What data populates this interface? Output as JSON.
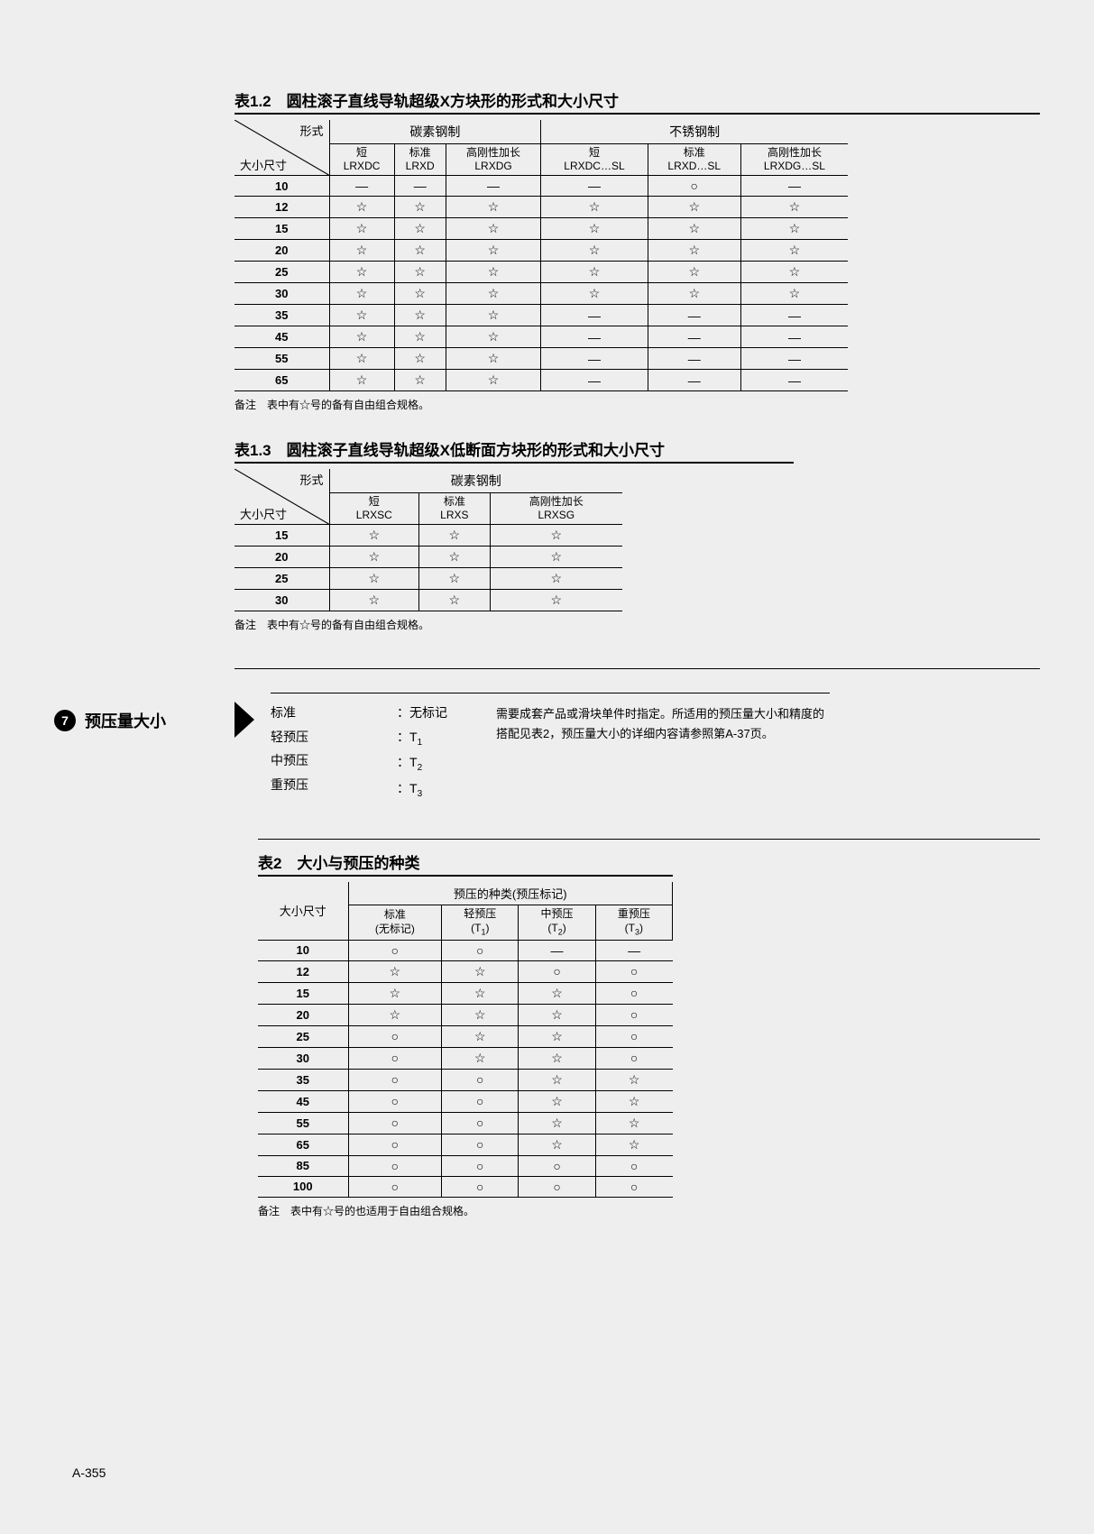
{
  "symbols": {
    "star": "☆",
    "circle": "○",
    "dash": "—"
  },
  "table12": {
    "title": "表1.2　圆柱滚子直线导轨超级X方块形的形式和大小尺寸",
    "diag_top": "形式",
    "diag_bottom": "大小尺寸",
    "group1": "碳素钢制",
    "group2": "不锈钢制",
    "cols": [
      {
        "l1": "短",
        "l2": "LRXDC"
      },
      {
        "l1": "标准",
        "l2": "LRXD"
      },
      {
        "l1": "高刚性加长",
        "l2": "LRXDG"
      },
      {
        "l1": "短",
        "l2": "LRXDC…SL"
      },
      {
        "l1": "标准",
        "l2": "LRXD…SL"
      },
      {
        "l1": "高刚性加长",
        "l2": "LRXDG…SL"
      }
    ],
    "rows": [
      {
        "size": "10",
        "v": [
          "—",
          "—",
          "—",
          "—",
          "○",
          "—"
        ]
      },
      {
        "size": "12",
        "v": [
          "☆",
          "☆",
          "☆",
          "☆",
          "☆",
          "☆"
        ]
      },
      {
        "size": "15",
        "v": [
          "☆",
          "☆",
          "☆",
          "☆",
          "☆",
          "☆"
        ]
      },
      {
        "size": "20",
        "v": [
          "☆",
          "☆",
          "☆",
          "☆",
          "☆",
          "☆"
        ]
      },
      {
        "size": "25",
        "v": [
          "☆",
          "☆",
          "☆",
          "☆",
          "☆",
          "☆"
        ]
      },
      {
        "size": "30",
        "v": [
          "☆",
          "☆",
          "☆",
          "☆",
          "☆",
          "☆"
        ]
      },
      {
        "size": "35",
        "v": [
          "☆",
          "☆",
          "☆",
          "—",
          "—",
          "—"
        ]
      },
      {
        "size": "45",
        "v": [
          "☆",
          "☆",
          "☆",
          "—",
          "—",
          "—"
        ]
      },
      {
        "size": "55",
        "v": [
          "☆",
          "☆",
          "☆",
          "—",
          "—",
          "—"
        ]
      },
      {
        "size": "65",
        "v": [
          "☆",
          "☆",
          "☆",
          "—",
          "—",
          "—"
        ]
      }
    ],
    "note": "备注　表中有☆号的备有自由组合规格。"
  },
  "table13": {
    "title": "表1.3　圆柱滚子直线导轨超级X低断面方块形的形式和大小尺寸",
    "diag_top": "形式",
    "diag_bottom": "大小尺寸",
    "group1": "碳素钢制",
    "cols": [
      {
        "l1": "短",
        "l2": "LRXSC"
      },
      {
        "l1": "标准",
        "l2": "LRXS"
      },
      {
        "l1": "高刚性加长",
        "l2": "LRXSG"
      }
    ],
    "rows": [
      {
        "size": "15",
        "v": [
          "☆",
          "☆",
          "☆"
        ]
      },
      {
        "size": "20",
        "v": [
          "☆",
          "☆",
          "☆"
        ]
      },
      {
        "size": "25",
        "v": [
          "☆",
          "☆",
          "☆"
        ]
      },
      {
        "size": "30",
        "v": [
          "☆",
          "☆",
          "☆"
        ]
      }
    ],
    "note": "备注　表中有☆号的备有自由组合规格。"
  },
  "section7": {
    "badge": "7",
    "title": "预压量大小",
    "rows": [
      {
        "name": "标准",
        "code": "：无标记"
      },
      {
        "name": "轻预压",
        "code": "：T",
        "sub": "1"
      },
      {
        "name": "中预压",
        "code": "：T",
        "sub": "2"
      },
      {
        "name": "重预压",
        "code": "：T",
        "sub": "3"
      }
    ],
    "desc": "需要成套产品或滑块单件时指定。所适用的预压量大小和精度的搭配见表2，预压量大小的详细内容请参照第A-37页。"
  },
  "table2": {
    "title": "表2　大小与预压的种类",
    "row_head": "大小尺寸",
    "top_head": "预压的种类(预压标记)",
    "cols": [
      {
        "l1": "标准",
        "l2": "(无标记)"
      },
      {
        "l1": "轻预压",
        "l2": "(T",
        "sub": "1",
        "l3": ")"
      },
      {
        "l1": "中预压",
        "l2": "(T",
        "sub": "2",
        "l3": ")"
      },
      {
        "l1": "重预压",
        "l2": "(T",
        "sub": "3",
        "l3": ")"
      }
    ],
    "rows": [
      {
        "size": "10",
        "v": [
          "○",
          "○",
          "—",
          "—"
        ]
      },
      {
        "size": "12",
        "v": [
          "☆",
          "☆",
          "○",
          "○"
        ]
      },
      {
        "size": "15",
        "v": [
          "☆",
          "☆",
          "☆",
          "○"
        ]
      },
      {
        "size": "20",
        "v": [
          "☆",
          "☆",
          "☆",
          "○"
        ]
      },
      {
        "size": "25",
        "v": [
          "○",
          "☆",
          "☆",
          "○"
        ]
      },
      {
        "size": "30",
        "v": [
          "○",
          "☆",
          "☆",
          "○"
        ]
      },
      {
        "size": "35",
        "v": [
          "○",
          "○",
          "☆",
          "☆"
        ]
      },
      {
        "size": "45",
        "v": [
          "○",
          "○",
          "☆",
          "☆"
        ]
      },
      {
        "size": "55",
        "v": [
          "○",
          "○",
          "☆",
          "☆"
        ]
      },
      {
        "size": "65",
        "v": [
          "○",
          "○",
          "☆",
          "☆"
        ]
      },
      {
        "size": "85",
        "v": [
          "○",
          "○",
          "○",
          "○"
        ]
      },
      {
        "size": "100",
        "v": [
          "○",
          "○",
          "○",
          "○"
        ]
      }
    ],
    "note": "备注　表中有☆号的也适用于自由组合规格。"
  },
  "page_num": "A-355"
}
